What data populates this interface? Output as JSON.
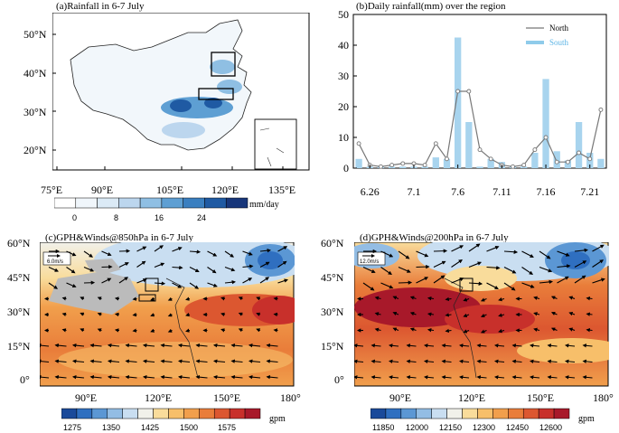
{
  "panel_a": {
    "title": "(a)Rainfall in 6-7 July",
    "y_ticks": [
      "50°N",
      "40°N",
      "30°N",
      "20°N"
    ],
    "x_ticks": [
      "75°E",
      "90°E",
      "105°E",
      "120°E",
      "135°E"
    ],
    "colorbar_ticks": [
      "0",
      "8",
      "16",
      "24"
    ],
    "colorbar_unit": "mm/day",
    "colorbar_colors": [
      "#ffffff",
      "#f0f6fb",
      "#dbeaf6",
      "#bcd6ee",
      "#8fbfe3",
      "#5e9fd3",
      "#3a7fc0",
      "#1f5aa3",
      "#17367a"
    ]
  },
  "panel_b": {
    "title": "(b)Daily rainfall(mm) over the region"
  },
  "chart_data": {
    "type": "bar+line",
    "title": "(b)Daily rainfall(mm) over the region",
    "x_tick_labels": [
      "6.26",
      "7.1",
      "7.6",
      "7.11",
      "7.16",
      "7.21"
    ],
    "y_tick_labels": [
      "0",
      "10",
      "20",
      "30",
      "40",
      "50"
    ],
    "ylim": [
      0,
      50
    ],
    "series": [
      {
        "name": "North",
        "kind": "line",
        "color": "#777777",
        "values": [
          8,
          1,
          0.5,
          1,
          1.5,
          1.5,
          1,
          8,
          3,
          25,
          25,
          6,
          3,
          1,
          0.5,
          1,
          6,
          10,
          2,
          2,
          5,
          3,
          19
        ]
      },
      {
        "name": "South",
        "kind": "bar",
        "color": "#a8d4ee",
        "values": [
          3,
          0.5,
          0.5,
          0.5,
          0.5,
          0.5,
          0.5,
          3.5,
          3,
          42.5,
          15,
          0.5,
          3,
          2,
          0.5,
          0.5,
          5,
          29,
          5.5,
          2.5,
          15,
          5,
          3
        ]
      }
    ]
  },
  "panel_c": {
    "title": "(c)GPH&Winds@850hPa in 6-7 July",
    "y_ticks": [
      "60°N",
      "45°N",
      "30°N",
      "15°N",
      "0°"
    ],
    "x_ticks": [
      "90°E",
      "120°E",
      "150°E",
      "180°"
    ],
    "ref_vector": "6.0m/s",
    "colorbar_ticks": [
      "1275",
      "1350",
      "1425",
      "1500",
      "1575"
    ],
    "colorbar_unit": "gpm"
  },
  "panel_d": {
    "title": "(d)GPH&Winds@200hPa in 6-7 July",
    "y_ticks": [
      "60°N",
      "45°N",
      "30°N",
      "15°N",
      "0°"
    ],
    "x_ticks": [
      "90°E",
      "120°E",
      "150°E",
      "180°"
    ],
    "ref_vector": "12.0m/s",
    "colorbar_ticks": [
      "11850",
      "12000",
      "12150",
      "12300",
      "12450",
      "12600"
    ],
    "colorbar_unit": "gpm"
  },
  "gph_colors": [
    "#1a4a9a",
    "#2f6fc0",
    "#5b97d4",
    "#93bde4",
    "#c9def1",
    "#f1f1ea",
    "#f9dc9b",
    "#f7bf6a",
    "#f19f4c",
    "#e97d3a",
    "#dc5730",
    "#c8302b",
    "#a8192a"
  ]
}
